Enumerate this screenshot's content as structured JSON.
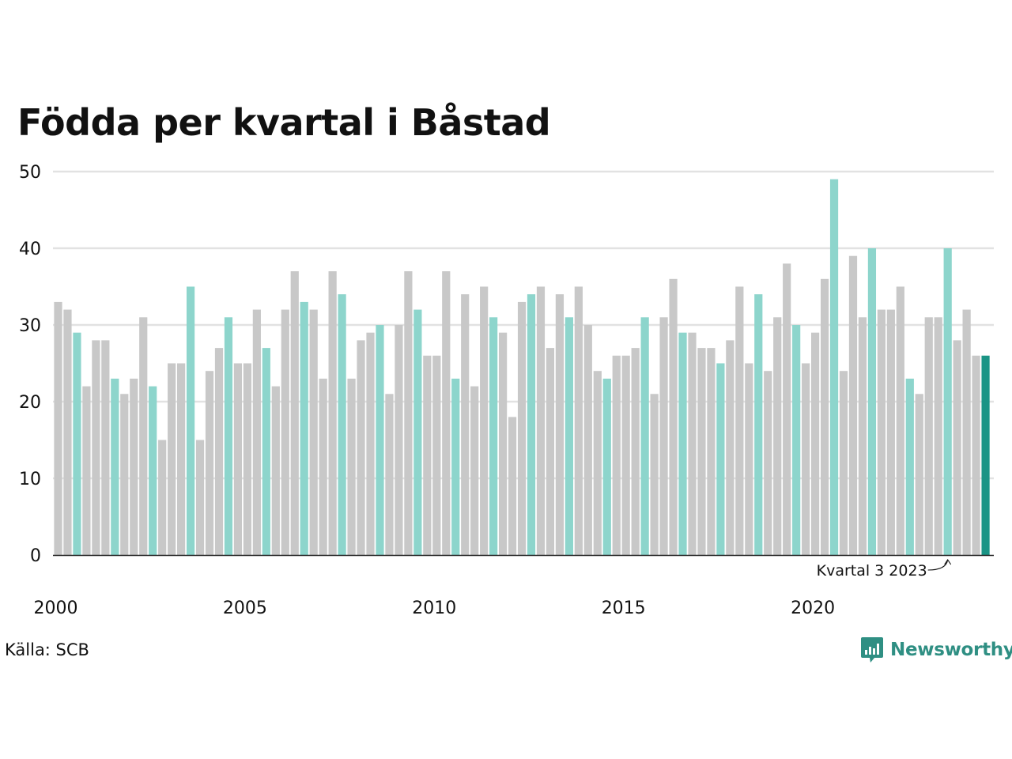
{
  "chart_data": {
    "type": "bar",
    "title": "Födda per kvartal i Båstad",
    "xlabel": "",
    "ylabel": "",
    "ylim": [
      0,
      50
    ],
    "yticks": [
      0,
      10,
      20,
      30,
      40,
      50
    ],
    "xticks": [
      {
        "label": "2000",
        "index": 0
      },
      {
        "label": "2005",
        "index": 20
      },
      {
        "label": "2010",
        "index": 40
      },
      {
        "label": "2015",
        "index": 60
      },
      {
        "label": "2020",
        "index": 80
      }
    ],
    "grid": true,
    "legend": "none",
    "start_year": 2000,
    "start_quarter": 1,
    "values": [
      33,
      32,
      29,
      22,
      28,
      28,
      23,
      21,
      23,
      31,
      22,
      15,
      25,
      25,
      35,
      15,
      24,
      27,
      31,
      25,
      25,
      32,
      27,
      22,
      32,
      37,
      33,
      32,
      23,
      37,
      34,
      23,
      28,
      29,
      30,
      21,
      30,
      37,
      32,
      26,
      26,
      37,
      23,
      34,
      22,
      35,
      31,
      29,
      18,
      33,
      34,
      35,
      27,
      34,
      31,
      35,
      30,
      24,
      23,
      26,
      26,
      27,
      31,
      21,
      31,
      36,
      29,
      29,
      27,
      27,
      25,
      28,
      35,
      25,
      34,
      24,
      31,
      38,
      30,
      25,
      29,
      36,
      49,
      24,
      39,
      31,
      40,
      32,
      32,
      35,
      23,
      21,
      31,
      31,
      40,
      28,
      32,
      26,
      26
    ],
    "colors": {
      "default": "#c8c8c8",
      "quarter3": "#8dd5cc",
      "latest": "#1a9485",
      "grid": "#e2e2e2",
      "axis": "#222222"
    },
    "annotation": {
      "label": "Kvartal 3 2023",
      "index": 94
    }
  },
  "source": "Källa: SCB",
  "brand": {
    "name": "Newsworthy",
    "icon": "newsworthy-logo-icon",
    "color": "#2f8f83"
  }
}
